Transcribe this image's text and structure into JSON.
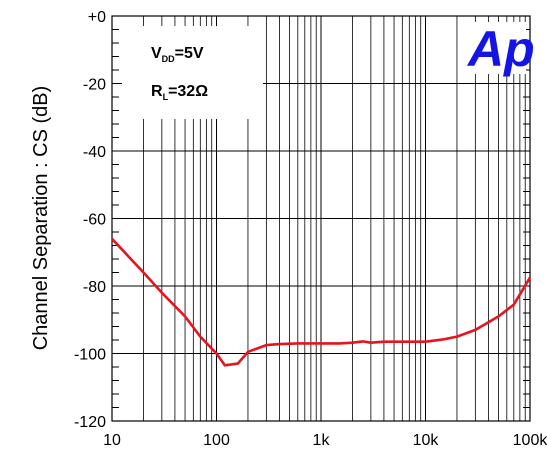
{
  "chart_data": {
    "type": "line",
    "title": "",
    "xlabel": "",
    "ylabel": "Channel Separation : CS (dB)",
    "x_scale": "log",
    "xlim": [
      10,
      100000
    ],
    "ylim": [
      -120,
      0
    ],
    "grid": true,
    "x_tick_values": [
      10,
      100,
      1000,
      10000,
      100000
    ],
    "x_tick_labels": [
      "10",
      "100",
      "1k",
      "10k",
      "100k"
    ],
    "y_tick_values": [
      0,
      -20,
      -40,
      -60,
      -80,
      -100,
      -120
    ],
    "y_tick_labels": [
      "+0",
      "-20",
      "-40",
      "-60",
      "-80",
      "-100",
      "-120"
    ],
    "annotations": {
      "line1_main": "V",
      "line1_sub": "DD",
      "line1_rest": "=5V",
      "line2_main": "R",
      "line2_sub": "L",
      "line2_rest": "=32Ω"
    },
    "logo_text": "Ap",
    "series": [
      {
        "color": "#e6141e",
        "x": [
          10,
          20,
          30,
          50,
          70,
          100,
          120,
          160,
          200,
          300,
          400,
          600,
          1000,
          1500,
          2000,
          2500,
          3000,
          4000,
          5000,
          7000,
          10000,
          15000,
          20000,
          30000,
          50000,
          70000,
          100000
        ],
        "y": [
          -66,
          -76,
          -82,
          -89,
          -95,
          -100,
          -103.5,
          -103,
          -99.5,
          -97.5,
          -97.2,
          -97,
          -97,
          -97,
          -96.8,
          -96.4,
          -96.8,
          -96.5,
          -96.5,
          -96.5,
          -96.5,
          -95.8,
          -95,
          -93,
          -89,
          -85.5,
          -77.5
        ]
      }
    ]
  }
}
